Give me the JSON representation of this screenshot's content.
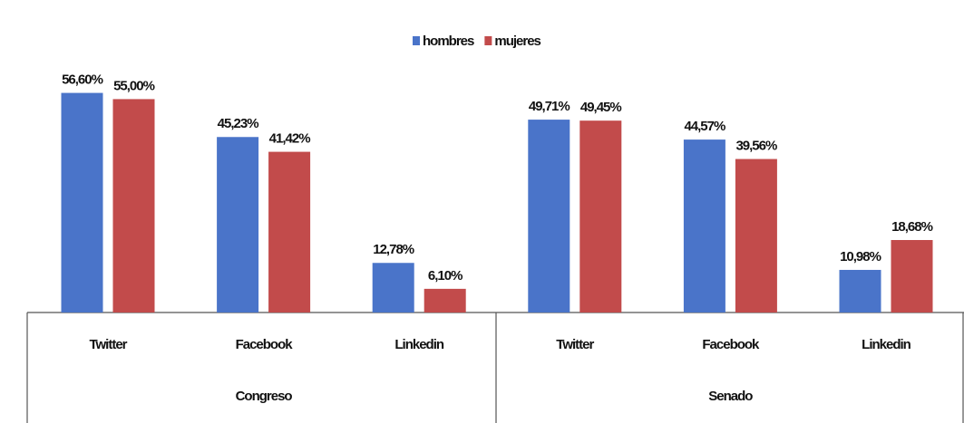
{
  "chart_data": {
    "type": "bar",
    "categories": [
      "Twitter",
      "Facebook",
      "Linkedin",
      "Twitter",
      "Facebook",
      "Linkedin"
    ],
    "group_labels": [
      "Congreso",
      "Senado"
    ],
    "series": [
      {
        "name": "hombres",
        "color": "#4a74c9",
        "values": [
          56.6,
          45.23,
          12.78,
          49.71,
          44.57,
          10.98
        ],
        "value_labels": [
          "56,60%",
          "45,23%",
          "12,78%",
          "49,71%",
          "44,57%",
          "10,98%"
        ]
      },
      {
        "name": "mujeres",
        "color": "#c24b4b",
        "values": [
          55,
          41.42,
          6.1,
          49.45,
          39.56,
          18.68
        ],
        "value_labels": [
          "55,00%",
          "41,42%",
          "6,10%",
          "49,45%",
          "39,56%",
          "18,68%"
        ]
      }
    ],
    "ylim": [
      0,
      60
    ],
    "legend": "top"
  }
}
